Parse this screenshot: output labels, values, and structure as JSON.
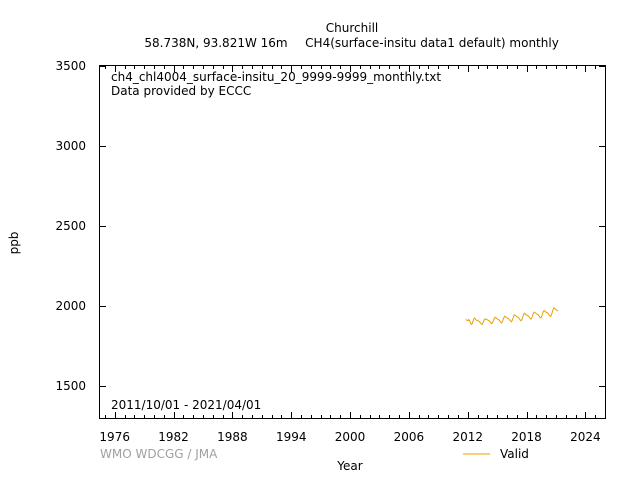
{
  "header": {
    "station": "Churchill",
    "location": "58.738N, 93.821W 16m",
    "parameter": "CH4(surface-insitu data1 default) monthly"
  },
  "annotations": {
    "file_name": "ch4_chl4004_surface-insitu_20_9999-9999_monthly.txt",
    "provider": "Data provided by ECCC",
    "date_range": "2011/10/01 - 2021/04/01",
    "watermark": "WMO WDCGG / JMA"
  },
  "legend": {
    "valid_label": "Valid"
  },
  "colors": {
    "series": "#e8a000",
    "axis": "#000000",
    "watermark": "#a0a0a0"
  },
  "chart_data": {
    "type": "line",
    "xlabel": "Year",
    "ylabel": "ppb",
    "xlim": [
      1974.5,
      2026.0
    ],
    "ylim": [
      1300,
      3500
    ],
    "xticks": [
      1976,
      1982,
      1988,
      1994,
      2000,
      2006,
      2012,
      2018,
      2024
    ],
    "yticks": [
      1500,
      2000,
      2500,
      3000,
      3500
    ],
    "grid": false,
    "legend_position": "bottom-right",
    "series": [
      {
        "name": "Valid",
        "x": [
          2011.79,
          2011.87,
          2011.96,
          2012.04,
          2012.12,
          2012.21,
          2012.29,
          2012.37,
          2012.46,
          2012.54,
          2012.62,
          2012.71,
          2012.79,
          2012.87,
          2012.96,
          2013.04,
          2013.12,
          2013.21,
          2013.29,
          2013.37,
          2013.46,
          2013.54,
          2013.62,
          2013.71,
          2013.79,
          2013.87,
          2013.96,
          2014.04,
          2014.12,
          2014.21,
          2014.29,
          2014.37,
          2014.46,
          2014.54,
          2014.62,
          2014.71,
          2014.79,
          2014.87,
          2014.96,
          2015.04,
          2015.12,
          2015.21,
          2015.29,
          2015.37,
          2015.46,
          2015.54,
          2015.62,
          2015.71,
          2015.79,
          2015.87,
          2015.96,
          2016.04,
          2016.12,
          2016.21,
          2016.29,
          2016.37,
          2016.46,
          2016.54,
          2016.62,
          2016.71,
          2016.79,
          2016.87,
          2016.96,
          2017.04,
          2017.12,
          2017.21,
          2017.29,
          2017.37,
          2017.46,
          2017.54,
          2017.62,
          2017.71,
          2017.79,
          2017.87,
          2017.96,
          2018.04,
          2018.12,
          2018.21,
          2018.29,
          2018.37,
          2018.46,
          2018.54,
          2018.62,
          2018.71,
          2018.79,
          2018.87,
          2018.96,
          2019.04,
          2019.12,
          2019.21,
          2019.29,
          2019.37,
          2019.46,
          2019.54,
          2019.62,
          2019.71,
          2019.79,
          2019.87,
          2019.96,
          2020.04,
          2020.12,
          2020.21,
          2020.29,
          2020.37,
          2020.46,
          2020.54,
          2020.62,
          2020.71,
          2020.79,
          2020.87,
          2020.96,
          2021.04,
          2021.12,
          2021.21
        ],
        "y": [
          1912,
          1914,
          1910,
          1908,
          1915,
          1905,
          1895,
          1885,
          1890,
          1905,
          1920,
          1925,
          1918,
          1912,
          1910,
          1908,
          1906,
          1902,
          1895,
          1888,
          1884,
          1892,
          1905,
          1915,
          1920,
          1918,
          1915,
          1912,
          1910,
          1906,
          1900,
          1893,
          1890,
          1898,
          1910,
          1922,
          1930,
          1926,
          1922,
          1918,
          1916,
          1912,
          1905,
          1898,
          1895,
          1903,
          1918,
          1930,
          1936,
          1932,
          1928,
          1925,
          1922,
          1918,
          1912,
          1906,
          1902,
          1910,
          1925,
          1940,
          1945,
          1940,
          1935,
          1932,
          1930,
          1925,
          1918,
          1911,
          1908,
          1918,
          1932,
          1948,
          1955,
          1950,
          1945,
          1942,
          1940,
          1936,
          1928,
          1921,
          1918,
          1926,
          1942,
          1956,
          1962,
          1958,
          1954,
          1950,
          1948,
          1943,
          1936,
          1929,
          1925,
          1934,
          1950,
          1965,
          1972,
          1968,
          1963,
          1960,
          1958,
          1952,
          1945,
          1938,
          1934,
          1944,
          1960,
          1978,
          1988,
          1985,
          1980,
          1975,
          1972,
          1970
        ]
      }
    ]
  }
}
